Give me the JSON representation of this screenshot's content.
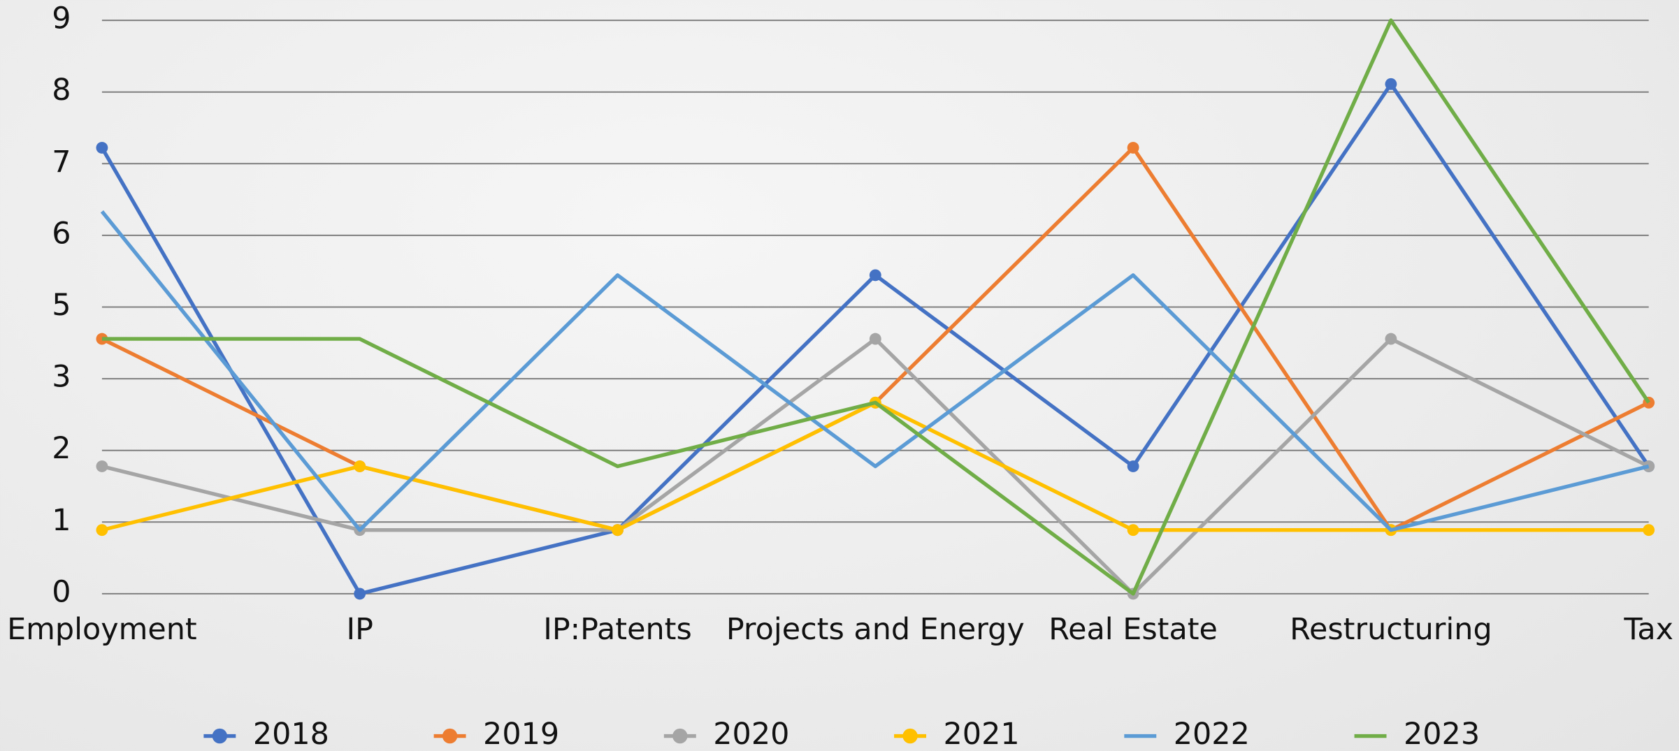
{
  "chart_data": {
    "type": "line",
    "categories": [
      "Employment",
      "IP",
      "IP:Patents",
      "Projects and Energy",
      "Real Estate",
      "Restructuring",
      "Tax"
    ],
    "series": [
      {
        "name": "2018",
        "color": "#4472c4",
        "markers": true,
        "values": [
          7,
          0,
          1,
          5,
          2,
          8,
          2
        ]
      },
      {
        "name": "2019",
        "color": "#ed7d31",
        "markers": true,
        "values": [
          4,
          2,
          1,
          3,
          7,
          1,
          3
        ]
      },
      {
        "name": "2020",
        "color": "#a5a5a5",
        "markers": true,
        "values": [
          2,
          1,
          1,
          4,
          0,
          4,
          2
        ]
      },
      {
        "name": "2021",
        "color": "#ffc000",
        "markers": true,
        "values": [
          1,
          2,
          1,
          3,
          1,
          1,
          1
        ]
      },
      {
        "name": "2022",
        "color": "#5b9bd5",
        "markers": false,
        "values": [
          6,
          1,
          5,
          2,
          5,
          1,
          2
        ]
      },
      {
        "name": "2023",
        "color": "#70ad47",
        "markers": false,
        "values": [
          4,
          4,
          2,
          3,
          0,
          9,
          3
        ]
      }
    ],
    "ylim": [
      0,
      9
    ],
    "yticks": [
      0,
      {
        "value": 1.125,
        "label": "1"
      },
      {
        "value": 2.25,
        "label": "2"
      },
      {
        "value": 3.375,
        "label": "3"
      },
      {
        "value": 4.5,
        "label": "5"
      },
      {
        "value": 5.625,
        "label": "6"
      },
      {
        "value": 6.75,
        "label": "7"
      },
      {
        "value": 7.875,
        "label": "8"
      },
      9
    ],
    "grid": true,
    "legend": "bottom"
  }
}
